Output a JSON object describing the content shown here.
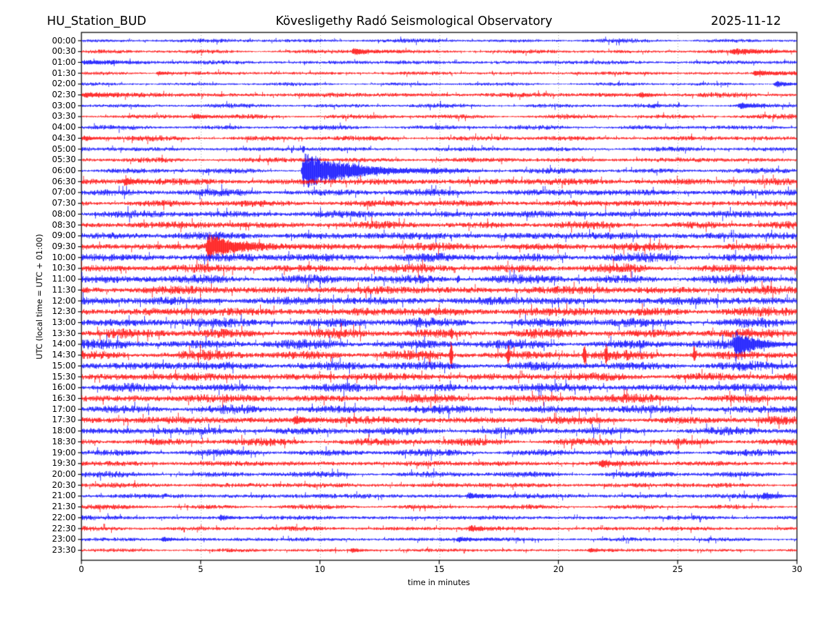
{
  "header": {
    "station": "HU_Station_BUD",
    "observatory": "Kövesligethy Radó Seismological Observatory",
    "date": "2025-11-12"
  },
  "chart_data": {
    "type": "line",
    "subtype": "helicorder_day_plot",
    "title": "Kövesligethy Radó Seismological Observatory",
    "station": "HU_Station_BUD",
    "date": "2025-11-12",
    "xlabel": "time in minutes",
    "ylabel": "UTC (local time = UTC + 01:00)",
    "xlim": [
      0,
      30
    ],
    "xticks": [
      0,
      5,
      10,
      15,
      20,
      25,
      30
    ],
    "minutes_per_row": 30,
    "grid": {
      "vertical": true,
      "style": "dotted",
      "color": "#999999"
    },
    "colors": {
      "even_rows": "#0000ff",
      "odd_rows": "#ff0000",
      "axes": "#000000",
      "background": "#ffffff"
    },
    "rows": [
      {
        "time": "00:00",
        "color": "blue",
        "noise_amp": 1.8,
        "events": []
      },
      {
        "time": "00:30",
        "color": "red",
        "noise_amp": 1.8,
        "events": [
          {
            "type": "burst",
            "t": 11.3,
            "dur": 1.6,
            "amp": 4.5,
            "tau": 0.8
          },
          {
            "type": "burst",
            "t": 27.2,
            "dur": 2.6,
            "amp": 2.8,
            "tau": 1.6
          }
        ]
      },
      {
        "time": "01:00",
        "color": "blue",
        "noise_amp": 2.0,
        "events": [
          {
            "type": "burst",
            "t": 0,
            "dur": 1.8,
            "amp": 2.6,
            "tau": 1.2
          }
        ]
      },
      {
        "time": "01:30",
        "color": "red",
        "noise_amp": 1.7,
        "events": [
          {
            "type": "burst",
            "t": 3.1,
            "dur": 0.7,
            "amp": 2.6,
            "tau": 0.4
          },
          {
            "type": "burst",
            "t": 28.1,
            "dur": 1.8,
            "amp": 3.0,
            "tau": 1.0
          }
        ]
      },
      {
        "time": "02:00",
        "color": "blue",
        "noise_amp": 1.5,
        "events": [
          {
            "type": "burst",
            "t": 29.0,
            "dur": 0.9,
            "amp": 4.8,
            "tau": 0.45
          }
        ]
      },
      {
        "time": "02:30",
        "color": "red",
        "noise_amp": 2.3,
        "events": [
          {
            "type": "burst",
            "t": 0,
            "dur": 1.4,
            "amp": 3.2,
            "tau": 0.9
          },
          {
            "type": "burst",
            "t": 23.3,
            "dur": 1.1,
            "amp": 3.0,
            "tau": 0.5
          }
        ]
      },
      {
        "time": "03:00",
        "color": "blue",
        "noise_amp": 1.9,
        "events": [
          {
            "type": "burst",
            "t": 27.5,
            "dur": 1.2,
            "amp": 4.2,
            "tau": 0.5
          }
        ]
      },
      {
        "time": "03:30",
        "color": "red",
        "noise_amp": 2.1,
        "events": [
          {
            "type": "burst",
            "t": 4.6,
            "dur": 0.8,
            "amp": 2.8,
            "tau": 0.4
          }
        ]
      },
      {
        "time": "04:00",
        "color": "blue",
        "noise_amp": 2.1,
        "events": []
      },
      {
        "time": "04:30",
        "color": "red",
        "noise_amp": 2.3,
        "events": [
          {
            "type": "burst",
            "t": 0,
            "dur": 1.0,
            "amp": 3.0,
            "tau": 0.6
          }
        ]
      },
      {
        "time": "05:00",
        "color": "blue",
        "noise_amp": 2.1,
        "events": [
          {
            "type": "spike",
            "t": 9.3,
            "amp": 4.5
          }
        ]
      },
      {
        "time": "05:30",
        "color": "red",
        "noise_amp": 2.3,
        "events": []
      },
      {
        "time": "06:00",
        "color": "blue",
        "noise_amp": 2.4,
        "events": [
          {
            "type": "burst",
            "t": 9.2,
            "dur": 4.5,
            "amp": 26,
            "tau": 1.8
          }
        ]
      },
      {
        "time": "06:30",
        "color": "red",
        "noise_amp": 3.2,
        "events": [
          {
            "type": "burst",
            "t": 1.7,
            "dur": 1.0,
            "amp": 4.5,
            "tau": 0.5
          }
        ]
      },
      {
        "time": "07:00",
        "color": "blue",
        "noise_amp": 3.3,
        "events": []
      },
      {
        "time": "07:30",
        "color": "red",
        "noise_amp": 3.2,
        "events": []
      },
      {
        "time": "08:00",
        "color": "blue",
        "noise_amp": 3.4,
        "events": []
      },
      {
        "time": "08:30",
        "color": "red",
        "noise_amp": 3.4,
        "events": []
      },
      {
        "time": "09:00",
        "color": "blue",
        "noise_amp": 3.6,
        "events": []
      },
      {
        "time": "09:30",
        "color": "red",
        "noise_amp": 3.7,
        "events": [
          {
            "type": "burst",
            "t": 5.2,
            "dur": 2.8,
            "amp": 17,
            "tau": 1.0
          }
        ]
      },
      {
        "time": "10:00",
        "color": "blue",
        "noise_amp": 4.0,
        "events": []
      },
      {
        "time": "10:30",
        "color": "red",
        "noise_amp": 3.9,
        "events": []
      },
      {
        "time": "11:00",
        "color": "blue",
        "noise_amp": 4.0,
        "events": [
          {
            "type": "spike",
            "t": 15.8,
            "amp": 6
          }
        ]
      },
      {
        "time": "11:30",
        "color": "red",
        "noise_amp": 4.0,
        "events": []
      },
      {
        "time": "12:00",
        "color": "blue",
        "noise_amp": 4.0,
        "events": []
      },
      {
        "time": "12:30",
        "color": "red",
        "noise_amp": 4.2,
        "events": []
      },
      {
        "time": "13:00",
        "color": "blue",
        "noise_amp": 4.2,
        "events": []
      },
      {
        "time": "13:30",
        "color": "red",
        "noise_amp": 4.2,
        "events": [
          {
            "type": "spike",
            "t": 15.5,
            "amp": 6
          }
        ]
      },
      {
        "time": "14:00",
        "color": "blue",
        "noise_amp": 4.2,
        "events": [
          {
            "type": "burst",
            "t": 27.3,
            "dur": 2.2,
            "amp": 16,
            "tau": 0.9
          }
        ]
      },
      {
        "time": "14:30",
        "color": "red",
        "noise_amp": 4.2,
        "events": [
          {
            "type": "spike",
            "t": 15.5,
            "amp": 22
          },
          {
            "type": "spike",
            "t": 17.9,
            "amp": 13
          },
          {
            "type": "spike",
            "t": 21.1,
            "amp": 16
          },
          {
            "type": "spike",
            "t": 22.0,
            "amp": 13
          },
          {
            "type": "spike",
            "t": 25.7,
            "amp": 11
          }
        ]
      },
      {
        "time": "15:00",
        "color": "blue",
        "noise_amp": 4.0,
        "events": []
      },
      {
        "time": "15:30",
        "color": "red",
        "noise_amp": 3.8,
        "events": []
      },
      {
        "time": "16:00",
        "color": "blue",
        "noise_amp": 3.8,
        "events": []
      },
      {
        "time": "16:30",
        "color": "red",
        "noise_amp": 4.0,
        "events": []
      },
      {
        "time": "17:00",
        "color": "blue",
        "noise_amp": 3.8,
        "events": []
      },
      {
        "time": "17:30",
        "color": "red",
        "noise_amp": 3.6,
        "events": [
          {
            "type": "burst",
            "t": 8.8,
            "dur": 0.9,
            "amp": 4.5,
            "tau": 0.5
          }
        ]
      },
      {
        "time": "18:00",
        "color": "blue",
        "noise_amp": 3.6,
        "events": []
      },
      {
        "time": "18:30",
        "color": "red",
        "noise_amp": 3.4,
        "events": []
      },
      {
        "time": "19:00",
        "color": "blue",
        "noise_amp": 3.1,
        "events": []
      },
      {
        "time": "19:30",
        "color": "red",
        "noise_amp": 2.7,
        "events": [
          {
            "type": "burst",
            "t": 21.7,
            "dur": 0.8,
            "amp": 3.5,
            "tau": 0.4
          }
        ]
      },
      {
        "time": "20:00",
        "color": "blue",
        "noise_amp": 2.7,
        "events": []
      },
      {
        "time": "20:30",
        "color": "red",
        "noise_amp": 2.4,
        "events": []
      },
      {
        "time": "21:00",
        "color": "blue",
        "noise_amp": 2.4,
        "events": [
          {
            "type": "burst",
            "t": 16.1,
            "dur": 1.0,
            "amp": 3.0,
            "tau": 0.5
          },
          {
            "type": "burst",
            "t": 28.5,
            "dur": 1.2,
            "amp": 3.5,
            "tau": 0.6
          }
        ]
      },
      {
        "time": "21:30",
        "color": "red",
        "noise_amp": 2.1,
        "events": []
      },
      {
        "time": "22:00",
        "color": "blue",
        "noise_amp": 2.1,
        "events": [
          {
            "type": "burst",
            "t": 5.7,
            "dur": 0.8,
            "amp": 2.8,
            "tau": 0.4
          }
        ]
      },
      {
        "time": "22:30",
        "color": "red",
        "noise_amp": 2.1,
        "events": [
          {
            "type": "burst",
            "t": 16.2,
            "dur": 0.8,
            "amp": 3.2,
            "tau": 0.4
          }
        ]
      },
      {
        "time": "23:00",
        "color": "blue",
        "noise_amp": 1.9,
        "events": [
          {
            "type": "burst",
            "t": 3.3,
            "dur": 0.8,
            "amp": 3.2,
            "tau": 0.4
          },
          {
            "type": "burst",
            "t": 15.7,
            "dur": 1.0,
            "amp": 2.8,
            "tau": 0.5
          }
        ]
      },
      {
        "time": "23:30",
        "color": "red",
        "noise_amp": 1.7,
        "events": [
          {
            "type": "burst",
            "t": 11.2,
            "dur": 0.7,
            "amp": 2.2,
            "tau": 0.4
          },
          {
            "type": "burst",
            "t": 21.2,
            "dur": 0.7,
            "amp": 2.2,
            "tau": 0.4
          }
        ]
      }
    ]
  }
}
